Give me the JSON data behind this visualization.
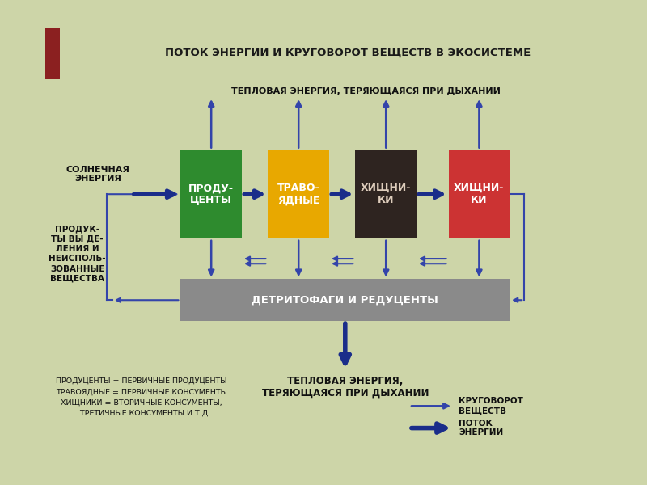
{
  "title": "ПОТОК ЭНЕРГИИ И КРУГОВОРОТ ВЕЩЕСТВ В ЭКОСИСТЕМЕ",
  "bg_outer": "#cdd5a8",
  "bg_inner": "#ffffff",
  "title_color": "#1a1a1a",
  "title_bar_color": "#8b2020",
  "arrow_thin": "#3344aa",
  "arrow_thick": "#1a2d8a",
  "box_colors": [
    "#2e8b2e",
    "#e8a800",
    "#2e2420",
    "#cc3333"
  ],
  "box_labels": [
    "ПРОДУ-\nЦЕНТЫ",
    "ТРАВО-\nЯДНЫЕ",
    "ХИЩНИ-\nКИ",
    "ХИЩНИ-\nКИ"
  ],
  "box_text_colors": [
    "#ffffff",
    "#ffffff",
    "#ddccbb",
    "#ffffff"
  ],
  "detritus_color": "#8a8a8a",
  "detritus_label": "ДЕТРИТОФАГИ И РЕДУЦЕНТЫ",
  "heat_top": "ТЕПЛОВАЯ ЭНЕРГИЯ, ТЕРЯЮЩАЯСЯ ПРИ ДЫХАНИИ",
  "solar": "СОЛНЕЧНАЯ\nЭНЕРГИЯ",
  "waste": "ПРОДУК-\nТЫ ВЫ ДЕ-\nЛЕНИЯ И\nНЕИСПОЛЬ-\nЗОВАННЫЕ\nВЕЩЕСТВА",
  "heat_bottom": "ТЕПЛОВАЯ ЭНЕРГИЯ,\nТЕРЯЮЩАЯСЯ ПРИ ДЫХАНИИ",
  "legend_left": "ПРОДУЦЕНТЫ = ПЕРВИЧНЫЕ ПРОДУЦЕНТЫ\nТРАВОЯДНЫЕ = ПЕРВИЧНЫЕ КОНСУМЕНТЫ\nХИЩНИКИ = ВТОРИЧНЫЕ КОНСУМЕНТЫ,\n   ТРЕТИЧНЫЕ КОНСУМЕНТЫ И Т.Д.",
  "legend_krug": "КРУГОВОРОТ\nВЕЩЕСТВ",
  "legend_potok": "ПОТОК\nЭНЕРГИИ"
}
